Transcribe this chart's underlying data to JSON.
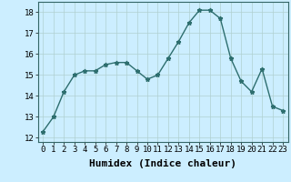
{
  "x": [
    0,
    1,
    2,
    3,
    4,
    5,
    6,
    7,
    8,
    9,
    10,
    11,
    12,
    13,
    14,
    15,
    16,
    17,
    18,
    19,
    20,
    21,
    22,
    23
  ],
  "y": [
    12.3,
    13.0,
    14.2,
    15.0,
    15.2,
    15.2,
    15.5,
    15.6,
    15.6,
    15.2,
    14.8,
    15.0,
    15.8,
    16.6,
    17.5,
    18.1,
    18.1,
    17.7,
    15.8,
    14.7,
    14.2,
    15.3,
    13.5,
    13.3
  ],
  "line_color": "#2d6e6e",
  "marker": "*",
  "marker_size": 3.5,
  "bg_color": "#cceeff",
  "grid_color": "#b0d0d0",
  "xlabel": "Humidex (Indice chaleur)",
  "xlim": [
    -0.5,
    23.5
  ],
  "ylim": [
    11.8,
    18.5
  ],
  "yticks": [
    12,
    13,
    14,
    15,
    16,
    17,
    18
  ],
  "xticks": [
    0,
    1,
    2,
    3,
    4,
    5,
    6,
    7,
    8,
    9,
    10,
    11,
    12,
    13,
    14,
    15,
    16,
    17,
    18,
    19,
    20,
    21,
    22,
    23
  ],
  "xtick_labels": [
    "0",
    "1",
    "2",
    "3",
    "4",
    "5",
    "6",
    "7",
    "8",
    "9",
    "10",
    "11",
    "12",
    "13",
    "14",
    "15",
    "16",
    "17",
    "18",
    "19",
    "20",
    "21",
    "22",
    "23"
  ],
  "xlabel_fontsize": 8,
  "tick_fontsize": 6.5,
  "line_width": 1.0
}
